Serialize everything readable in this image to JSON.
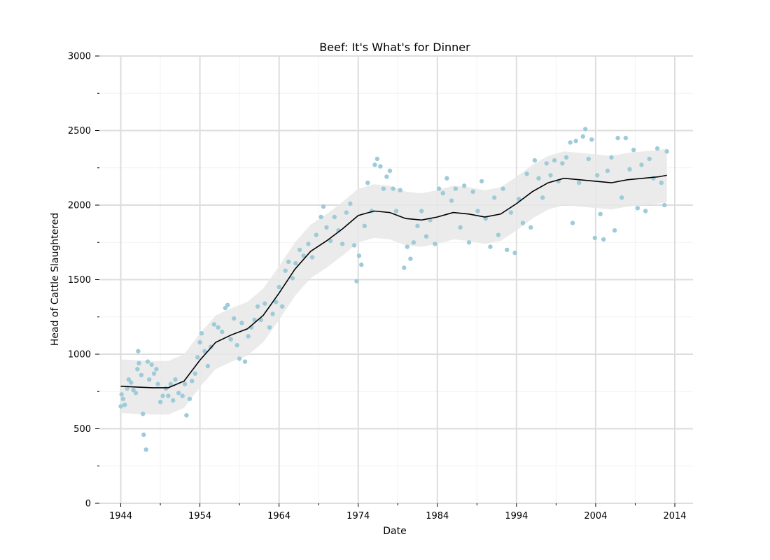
{
  "chart_data": {
    "type": "scatter",
    "title": "Beef: It's What's for Dinner",
    "xlabel": "Date",
    "ylabel": "Head of Cattle Slaughtered",
    "xlim": [
      1941.3,
      2016.3
    ],
    "ylim": [
      0,
      3000
    ],
    "x_ticks": [
      "1944",
      "1954",
      "1964",
      "1974",
      "1984",
      "1994",
      "2004",
      "2014"
    ],
    "x_tick_values": [
      1944,
      1954,
      1964,
      1974,
      1984,
      1994,
      2004,
      2014
    ],
    "y_ticks": [
      "0",
      "500",
      "1000",
      "1500",
      "2000",
      "2500",
      "3000"
    ],
    "y_tick_values": [
      0,
      500,
      1000,
      1500,
      2000,
      2500,
      3000
    ],
    "grid": true,
    "series": [
      {
        "kind": "scatter",
        "color": "#9ecbd9",
        "sampled_points": [
          [
            1944.0,
            650
          ],
          [
            1944.1,
            730
          ],
          [
            1944.3,
            700
          ],
          [
            1944.5,
            660
          ],
          [
            1944.8,
            770
          ],
          [
            1945.0,
            830
          ],
          [
            1945.3,
            810
          ],
          [
            1945.6,
            760
          ],
          [
            1945.9,
            740
          ],
          [
            1946.1,
            900
          ],
          [
            1946.2,
            1020
          ],
          [
            1946.3,
            940
          ],
          [
            1946.6,
            860
          ],
          [
            1946.8,
            600
          ],
          [
            1946.9,
            460
          ],
          [
            1947.2,
            360
          ],
          [
            1947.4,
            950
          ],
          [
            1947.6,
            830
          ],
          [
            1947.9,
            930
          ],
          [
            1948.2,
            870
          ],
          [
            1948.5,
            900
          ],
          [
            1948.7,
            800
          ],
          [
            1949.0,
            680
          ],
          [
            1949.3,
            720
          ],
          [
            1949.7,
            770
          ],
          [
            1950.0,
            720
          ],
          [
            1950.3,
            800
          ],
          [
            1950.6,
            690
          ],
          [
            1950.9,
            830
          ],
          [
            1951.3,
            740
          ],
          [
            1951.8,
            720
          ],
          [
            1952.1,
            800
          ],
          [
            1952.3,
            590
          ],
          [
            1952.7,
            700
          ],
          [
            1953.0,
            820
          ],
          [
            1953.4,
            870
          ],
          [
            1953.7,
            980
          ],
          [
            1954.0,
            1080
          ],
          [
            1954.2,
            1140
          ],
          [
            1954.6,
            1020
          ],
          [
            1955.0,
            920
          ],
          [
            1955.4,
            1050
          ],
          [
            1955.8,
            1200
          ],
          [
            1956.3,
            1180
          ],
          [
            1956.8,
            1150
          ],
          [
            1957.2,
            1310
          ],
          [
            1957.5,
            1330
          ],
          [
            1957.9,
            1100
          ],
          [
            1958.3,
            1240
          ],
          [
            1958.7,
            1060
          ],
          [
            1959.0,
            970
          ],
          [
            1959.3,
            1210
          ],
          [
            1959.7,
            950
          ],
          [
            1960.1,
            1120
          ],
          [
            1960.5,
            1180
          ],
          [
            1960.9,
            1230
          ],
          [
            1961.3,
            1320
          ],
          [
            1961.7,
            1230
          ],
          [
            1962.2,
            1340
          ],
          [
            1962.8,
            1180
          ],
          [
            1963.2,
            1270
          ],
          [
            1963.6,
            1350
          ],
          [
            1964.0,
            1450
          ],
          [
            1964.4,
            1320
          ],
          [
            1964.8,
            1560
          ],
          [
            1965.2,
            1620
          ],
          [
            1965.7,
            1510
          ],
          [
            1966.1,
            1610
          ],
          [
            1966.6,
            1700
          ],
          [
            1967.1,
            1660
          ],
          [
            1967.7,
            1740
          ],
          [
            1968.2,
            1650
          ],
          [
            1968.7,
            1800
          ],
          [
            1969.3,
            1920
          ],
          [
            1969.6,
            1990
          ],
          [
            1970.0,
            1850
          ],
          [
            1970.5,
            1760
          ],
          [
            1971.0,
            1920
          ],
          [
            1971.5,
            1830
          ],
          [
            1972.0,
            1740
          ],
          [
            1972.5,
            1950
          ],
          [
            1973.0,
            2010
          ],
          [
            1973.5,
            1730
          ],
          [
            1973.8,
            1490
          ],
          [
            1974.1,
            1660
          ],
          [
            1974.4,
            1600
          ],
          [
            1974.8,
            1860
          ],
          [
            1975.2,
            2150
          ],
          [
            1975.7,
            1960
          ],
          [
            1976.1,
            2270
          ],
          [
            1976.4,
            2310
          ],
          [
            1976.8,
            2260
          ],
          [
            1977.2,
            2110
          ],
          [
            1977.6,
            2190
          ],
          [
            1978.0,
            2230
          ],
          [
            1978.4,
            2110
          ],
          [
            1978.8,
            1960
          ],
          [
            1979.3,
            2100
          ],
          [
            1979.8,
            1580
          ],
          [
            1980.2,
            1720
          ],
          [
            1980.6,
            1640
          ],
          [
            1981.0,
            1750
          ],
          [
            1981.5,
            1860
          ],
          [
            1982.0,
            1960
          ],
          [
            1982.6,
            1790
          ],
          [
            1983.1,
            1900
          ],
          [
            1983.7,
            1740
          ],
          [
            1984.2,
            2110
          ],
          [
            1984.7,
            2080
          ],
          [
            1985.2,
            2180
          ],
          [
            1985.8,
            2030
          ],
          [
            1986.3,
            2110
          ],
          [
            1986.9,
            1850
          ],
          [
            1987.4,
            2130
          ],
          [
            1988.0,
            1750
          ],
          [
            1988.5,
            2090
          ],
          [
            1989.1,
            1960
          ],
          [
            1989.6,
            2160
          ],
          [
            1990.1,
            1910
          ],
          [
            1990.7,
            1720
          ],
          [
            1991.2,
            2050
          ],
          [
            1991.7,
            1800
          ],
          [
            1992.3,
            2110
          ],
          [
            1992.8,
            1700
          ],
          [
            1993.3,
            1950
          ],
          [
            1993.8,
            1680
          ],
          [
            1994.3,
            2040
          ],
          [
            1994.8,
            1880
          ],
          [
            1995.3,
            2210
          ],
          [
            1995.8,
            1850
          ],
          [
            1996.3,
            2300
          ],
          [
            1996.8,
            2180
          ],
          [
            1997.3,
            2050
          ],
          [
            1997.8,
            2280
          ],
          [
            1998.3,
            2200
          ],
          [
            1998.8,
            2300
          ],
          [
            1999.3,
            2160
          ],
          [
            1999.8,
            2280
          ],
          [
            2000.3,
            2320
          ],
          [
            2000.8,
            2420
          ],
          [
            2001.1,
            1880
          ],
          [
            2001.5,
            2430
          ],
          [
            2001.9,
            2150
          ],
          [
            2002.4,
            2460
          ],
          [
            2002.7,
            2510
          ],
          [
            2003.1,
            2310
          ],
          [
            2003.5,
            2440
          ],
          [
            2003.9,
            1780
          ],
          [
            2004.2,
            2200
          ],
          [
            2004.6,
            1940
          ],
          [
            2005.0,
            1770
          ],
          [
            2005.5,
            2230
          ],
          [
            2006.0,
            2320
          ],
          [
            2006.4,
            1830
          ],
          [
            2006.8,
            2450
          ],
          [
            2007.3,
            2050
          ],
          [
            2007.8,
            2450
          ],
          [
            2008.3,
            2240
          ],
          [
            2008.8,
            2370
          ],
          [
            2009.3,
            1980
          ],
          [
            2009.8,
            2270
          ],
          [
            2010.3,
            1960
          ],
          [
            2010.8,
            2310
          ],
          [
            2011.3,
            2180
          ],
          [
            2011.8,
            2380
          ],
          [
            2012.3,
            2150
          ],
          [
            2012.7,
            2000
          ],
          [
            2013.0,
            2360
          ]
        ]
      },
      {
        "kind": "line",
        "color": "#000000",
        "x": [
          1944,
          1946,
          1948,
          1950,
          1952,
          1954,
          1956,
          1958,
          1960,
          1962,
          1964,
          1966,
          1968,
          1970,
          1972,
          1974,
          1976,
          1978,
          1980,
          1982,
          1984,
          1986,
          1988,
          1990,
          1992,
          1994,
          1996,
          1998,
          2000,
          2002,
          2004,
          2006,
          2008,
          2010,
          2012,
          2013
        ],
        "y": [
          785,
          780,
          775,
          775,
          820,
          960,
          1080,
          1130,
          1170,
          1260,
          1410,
          1570,
          1690,
          1760,
          1840,
          1930,
          1960,
          1950,
          1910,
          1900,
          1920,
          1950,
          1940,
          1920,
          1940,
          2010,
          2090,
          2150,
          2180,
          2170,
          2160,
          2150,
          2170,
          2180,
          2190,
          2200
        ],
        "band_lower": [
          605,
          600,
          595,
          595,
          640,
          780,
          900,
          950,
          990,
          1080,
          1230,
          1390,
          1510,
          1580,
          1660,
          1750,
          1780,
          1770,
          1730,
          1720,
          1740,
          1770,
          1760,
          1740,
          1760,
          1830,
          1910,
          1970,
          2000,
          1990,
          1980,
          1970,
          1990,
          2000,
          2010,
          2020
        ],
        "band_upper": [
          965,
          960,
          955,
          955,
          1000,
          1140,
          1260,
          1310,
          1350,
          1440,
          1590,
          1750,
          1870,
          1940,
          2020,
          2110,
          2140,
          2130,
          2090,
          2080,
          2100,
          2130,
          2120,
          2100,
          2120,
          2190,
          2270,
          2330,
          2360,
          2350,
          2340,
          2330,
          2350,
          2360,
          2370,
          2380
        ],
        "band_color": "#e8e8e8"
      }
    ]
  }
}
